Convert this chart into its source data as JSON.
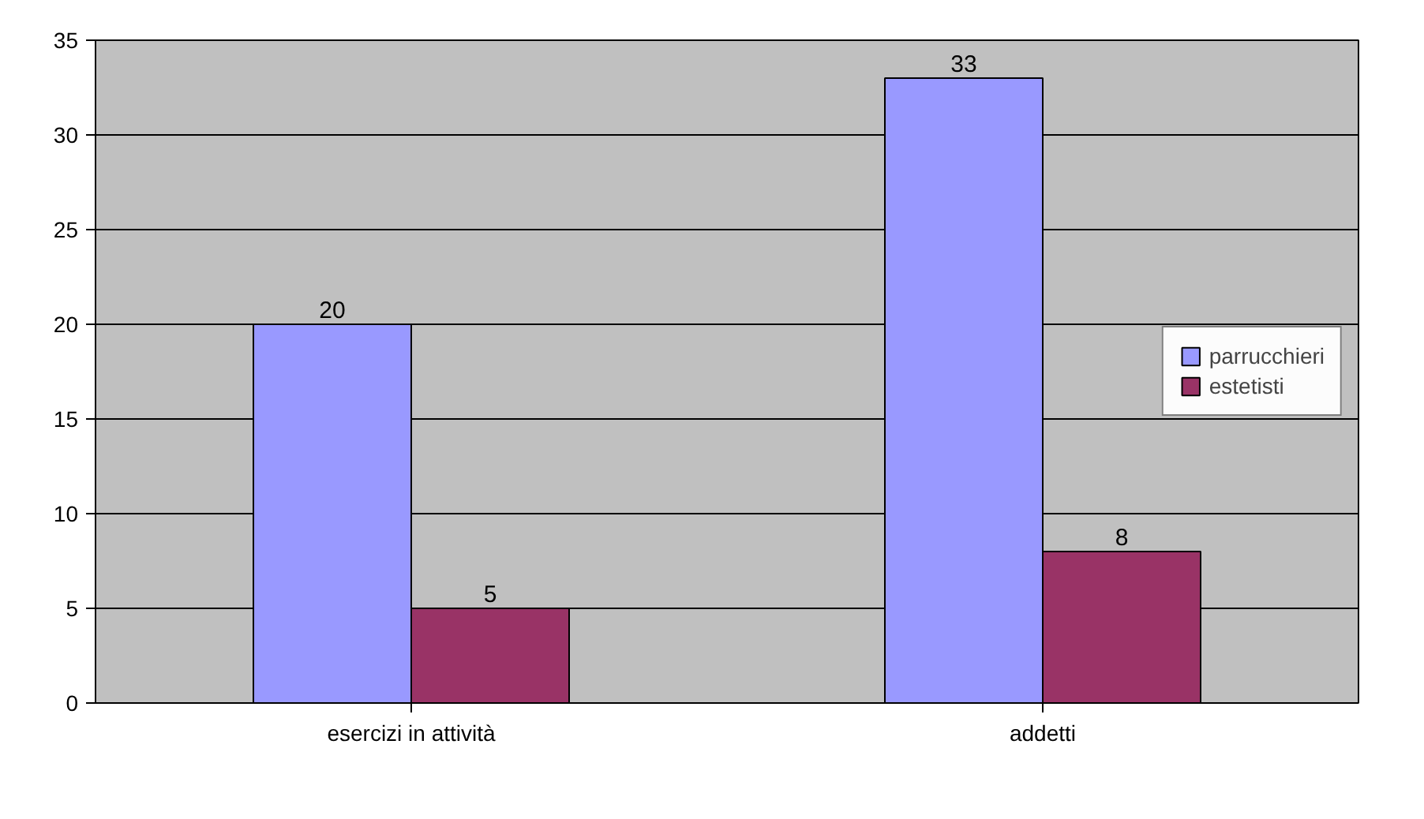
{
  "chart_data": {
    "type": "bar",
    "categories": [
      "esercizi in attività",
      "addetti"
    ],
    "series": [
      {
        "name": "parrucchieri",
        "color": "#9999ff",
        "values": [
          20,
          33
        ]
      },
      {
        "name": "estetisti",
        "color": "#993366",
        "values": [
          5,
          8
        ]
      }
    ],
    "ylim": [
      0,
      35
    ],
    "yticks": [
      0,
      5,
      10,
      15,
      20,
      25,
      30,
      35
    ],
    "grid": "y",
    "legend": "right",
    "data_labels": true
  }
}
